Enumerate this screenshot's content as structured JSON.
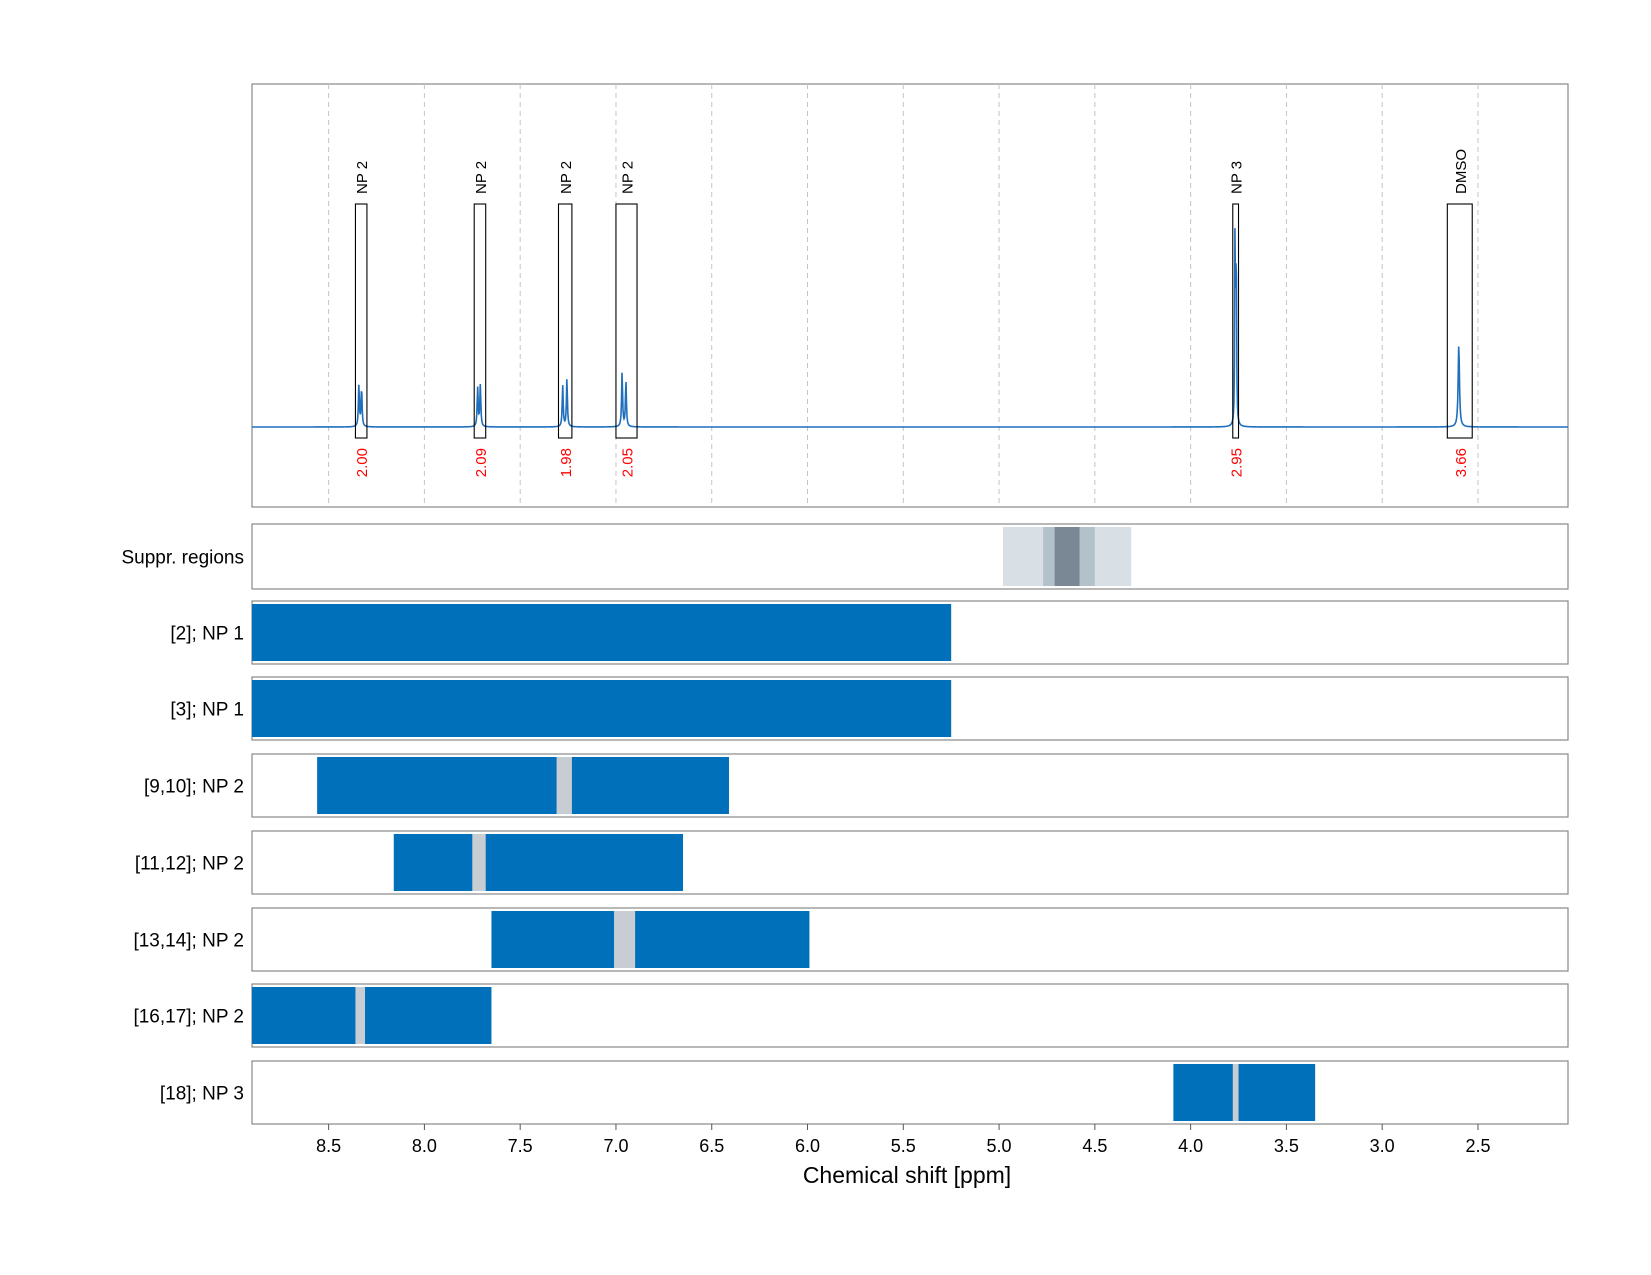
{
  "chart_data": {
    "type": "nmr-spectrum-with-range-tracks",
    "xlabel": "Chemical shift [ppm]",
    "x_range": [
      8.9,
      2.03
    ],
    "x_reversed": true,
    "x_ticks": [
      8.5,
      8.0,
      7.5,
      7.0,
      6.5,
      6.0,
      5.5,
      5.0,
      4.5,
      4.0,
      3.5,
      3.0,
      2.5
    ],
    "x_tick_labels": [
      "8.5",
      "8.0",
      "7.5",
      "7.0",
      "6.5",
      "6.0",
      "5.5",
      "5.0",
      "4.5",
      "4.0",
      "3.5",
      "3.0",
      "2.5"
    ],
    "grid": true,
    "colors": {
      "spectrum": "#1f6fbd",
      "bar": "#0070bb",
      "gap": "#c8cdd3",
      "integral_text": "#ff0000",
      "frame": "#888888",
      "suppr_light": "#d8e0e6",
      "suppr_mid": "#b3c1cb",
      "suppr_dark": "#7a8895"
    },
    "spectrum": {
      "baseline": 0,
      "y_range": [
        -0.3,
        1.0
      ],
      "peaks": [
        {
          "center": 8.335,
          "lines": [
            8.342,
            8.328
          ],
          "heights": [
            0.19,
            0.18
          ],
          "width": 0.003
        },
        {
          "center": 7.715,
          "lines": [
            7.722,
            7.708
          ],
          "heights": [
            0.18,
            0.19
          ],
          "width": 0.003
        },
        {
          "center": 7.27,
          "lines": [
            7.278,
            7.256
          ],
          "heights": [
            0.19,
            0.22
          ],
          "width": 0.003
        },
        {
          "center": 6.96,
          "lines": [
            6.968,
            6.948
          ],
          "heights": [
            0.25,
            0.21
          ],
          "width": 0.003
        },
        {
          "center": 3.765,
          "lines": [
            3.768,
            3.762
          ],
          "heights": [
            0.92,
            0.88
          ],
          "width": 0.002
        },
        {
          "center": 2.6,
          "lines": [
            2.6
          ],
          "heights": [
            0.38
          ],
          "width": 0.004
        }
      ]
    },
    "annotations": [
      {
        "label": "NP 2",
        "integral": "2.00",
        "x0": 8.36,
        "x1": 8.3
      },
      {
        "label": "NP 2",
        "integral": "2.09",
        "x0": 7.74,
        "x1": 7.68
      },
      {
        "label": "NP 2",
        "integral": "1.98",
        "x0": 7.3,
        "x1": 7.23
      },
      {
        "label": "NP 2",
        "integral": "2.05",
        "x0": 7.0,
        "x1": 6.89
      },
      {
        "label": "NP 3",
        "integral": "2.95",
        "x0": 3.78,
        "x1": 3.75
      },
      {
        "label": "DMSO",
        "integral": "3.66",
        "x0": 2.66,
        "x1": 2.53
      }
    ],
    "suppr_regions": {
      "label": "Suppr. regions",
      "bands": [
        {
          "x0": 4.98,
          "x1": 4.31,
          "shade": "light"
        },
        {
          "x0": 4.77,
          "x1": 4.5,
          "shade": "mid"
        },
        {
          "x0": 4.71,
          "x1": 4.58,
          "shade": "dark"
        }
      ]
    },
    "tracks": [
      {
        "label": "[2]; NP 1",
        "x0": 8.9,
        "x1": 5.25,
        "gaps": []
      },
      {
        "label": "[3]; NP 1",
        "x0": 8.9,
        "x1": 5.25,
        "gaps": []
      },
      {
        "label": "[9,10]; NP 2",
        "x0": 8.56,
        "x1": 6.41,
        "gaps": [
          [
            7.31,
            7.23
          ]
        ]
      },
      {
        "label": "[11,12]; NP 2",
        "x0": 8.16,
        "x1": 6.65,
        "gaps": [
          [
            7.75,
            7.68
          ]
        ]
      },
      {
        "label": "[13,14]; NP 2",
        "x0": 7.65,
        "x1": 5.99,
        "gaps": [
          [
            7.01,
            6.9
          ]
        ]
      },
      {
        "label": "[16,17]; NP 2",
        "x0": 8.9,
        "x1": 7.65,
        "gaps": [
          [
            8.36,
            8.31
          ]
        ]
      },
      {
        "label": "[18]; NP 3",
        "x0": 4.09,
        "x1": 3.35,
        "gaps": [
          [
            3.78,
            3.75
          ]
        ]
      }
    ]
  }
}
